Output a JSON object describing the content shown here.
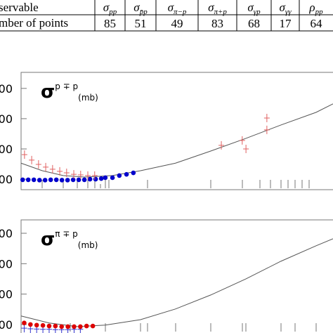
{
  "table": {
    "first_column": [
      "servable",
      "mber of points"
    ],
    "columns": [
      {
        "symbol": "σ",
        "subscript": "pp",
        "count": 85
      },
      {
        "symbol": "σ",
        "subscript": "p̄p",
        "count": 51
      },
      {
        "symbol": "σ",
        "subscript": "π−p",
        "count": 49
      },
      {
        "symbol": "σ",
        "subscript": "π+p",
        "count": 83
      },
      {
        "symbol": "σ",
        "subscript": "γp",
        "count": 68
      },
      {
        "symbol": "σ",
        "subscript": "γγ",
        "count": 17
      },
      {
        "symbol": "ρ",
        "subscript": "pp",
        "count": 64
      }
    ]
  },
  "chart_data": [
    {
      "type": "line",
      "label": {
        "symbol": "σ",
        "superscript": "p ∓ p",
        "subscript": "(mb)"
      },
      "xlim": [
        0,
        100
      ],
      "ylim": [
        0.7,
        4.53
      ],
      "yticks": [
        {
          "value": 1,
          "label": "00"
        },
        {
          "value": 2,
          "label": "00"
        },
        {
          "value": 3,
          "label": "00"
        },
        {
          "value": 4,
          "label": "00"
        }
      ],
      "series": [
        {
          "marker": "line",
          "color": "#555555",
          "x": [
            0,
            6.8,
            13.5,
            20.3,
            29.3,
            38.3,
            49.5,
            60.8,
            72.1,
            83.3,
            94.6,
            100
          ],
          "values": [
            1.53,
            1.28,
            1.12,
            1.07,
            1.12,
            1.28,
            1.53,
            1.93,
            2.35,
            2.79,
            3.21,
            3.49
          ]
        },
        {
          "marker": "circle",
          "color": "#0000cc",
          "x": [
            0.5,
            2.3,
            4.1,
            5.9,
            7.7,
            9.5,
            11.3,
            13.1,
            14.9,
            16.7,
            18.5,
            20.3,
            22.1,
            23.9,
            25.7,
            27.0,
            29.3,
            31.5,
            33.8,
            36.0
          ],
          "values": [
            0.98,
            0.98,
            0.98,
            0.97,
            0.97,
            0.98,
            0.98,
            0.97,
            0.97,
            0.98,
            0.98,
            0.98,
            1.0,
            1.0,
            1.02,
            1.05,
            1.05,
            1.12,
            1.16,
            1.21
          ]
        },
        {
          "marker": "plus",
          "color": "#e06060",
          "x": [
            1.1,
            3.4,
            5.6,
            7.9,
            10.1,
            12.4,
            14.6,
            16.9,
            19.1,
            21.4,
            23.6,
            64.2,
            70.9,
            72.1,
            78.8,
            78.8
          ],
          "values": [
            1.81,
            1.63,
            1.49,
            1.4,
            1.33,
            1.26,
            1.21,
            1.16,
            1.14,
            1.12,
            1.12,
            2.12,
            2.28,
            2.0,
            3.02,
            2.63
          ]
        }
      ]
    },
    {
      "type": "line",
      "label": {
        "symbol": "σ",
        "superscript": "π ∓ p",
        "subscript": "(mb)"
      },
      "xlim": [
        0,
        100
      ],
      "ylim": [
        0.72,
        4.44
      ],
      "yticks": [
        {
          "value": 1,
          "label": "00"
        },
        {
          "value": 2,
          "label": "00"
        },
        {
          "value": 3,
          "label": "00"
        },
        {
          "value": 4,
          "label": "00"
        }
      ],
      "series": [
        {
          "marker": "line",
          "color": "#555555",
          "x": [
            0,
            9.0,
            18.0,
            27.0,
            38.3,
            49.5,
            60.8,
            72.1,
            83.3,
            94.6,
            100
          ],
          "values": [
            1.28,
            1.05,
            0.93,
            0.98,
            1.16,
            1.51,
            1.97,
            2.5,
            3.08,
            3.59,
            3.82
          ]
        },
        {
          "marker": "plus",
          "color": "#3333cc",
          "x": [
            1,
            3,
            5,
            7,
            9,
            11,
            13,
            15,
            17,
            19
          ],
          "values": [
            0.88,
            0.86,
            0.85,
            0.84,
            0.84,
            0.83,
            0.83,
            0.83,
            0.84,
            0.84
          ]
        },
        {
          "marker": "circle",
          "color": "#dd0000",
          "x": [
            1,
            3,
            5,
            7,
            9,
            11,
            13,
            15,
            17,
            19,
            21,
            23
          ],
          "values": [
            1.05,
            1.0,
            0.98,
            0.97,
            0.95,
            0.95,
            0.93,
            0.93,
            0.93,
            0.93,
            0.95,
            0.95
          ]
        }
      ]
    }
  ]
}
